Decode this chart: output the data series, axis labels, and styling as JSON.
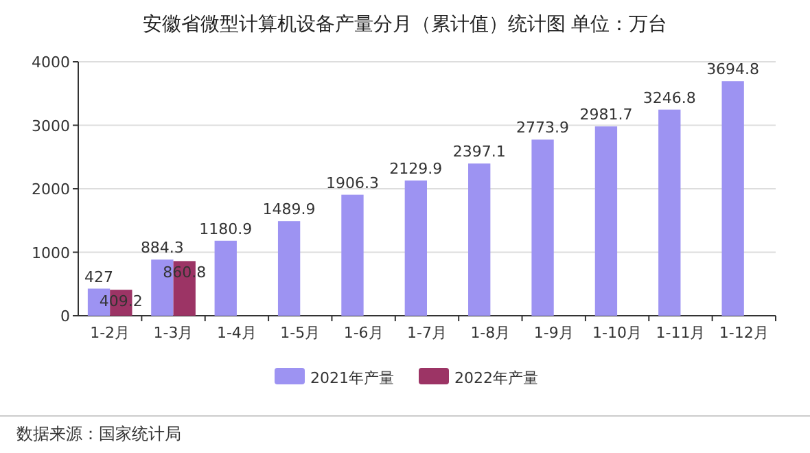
{
  "chart_data": {
    "type": "bar",
    "title": "安徽省微型计算机设备产量分月（累计值）统计图 单位：万台",
    "categories": [
      "1-2月",
      "1-3月",
      "1-4月",
      "1-5月",
      "1-6月",
      "1-7月",
      "1-8月",
      "1-9月",
      "1-10月",
      "1-11月",
      "1-12月"
    ],
    "series": [
      {
        "name": "2021年产量",
        "color": "#9d93f2",
        "values": [
          427,
          884.3,
          1180.9,
          1489.9,
          1906.3,
          2129.9,
          2397.1,
          2773.9,
          2981.7,
          3246.8,
          3694.8
        ]
      },
      {
        "name": "2022年产量",
        "color": "#9c3465",
        "values": [
          409.2,
          860.8,
          null,
          null,
          null,
          null,
          null,
          null,
          null,
          null,
          null
        ]
      }
    ],
    "ylim": [
      0,
      4000
    ],
    "yticks": [
      0,
      1000,
      2000,
      3000,
      4000
    ],
    "grid": "y",
    "legend": "bottom",
    "data_labels": true,
    "annotations": [
      "数据来源：国家统计局"
    ]
  }
}
